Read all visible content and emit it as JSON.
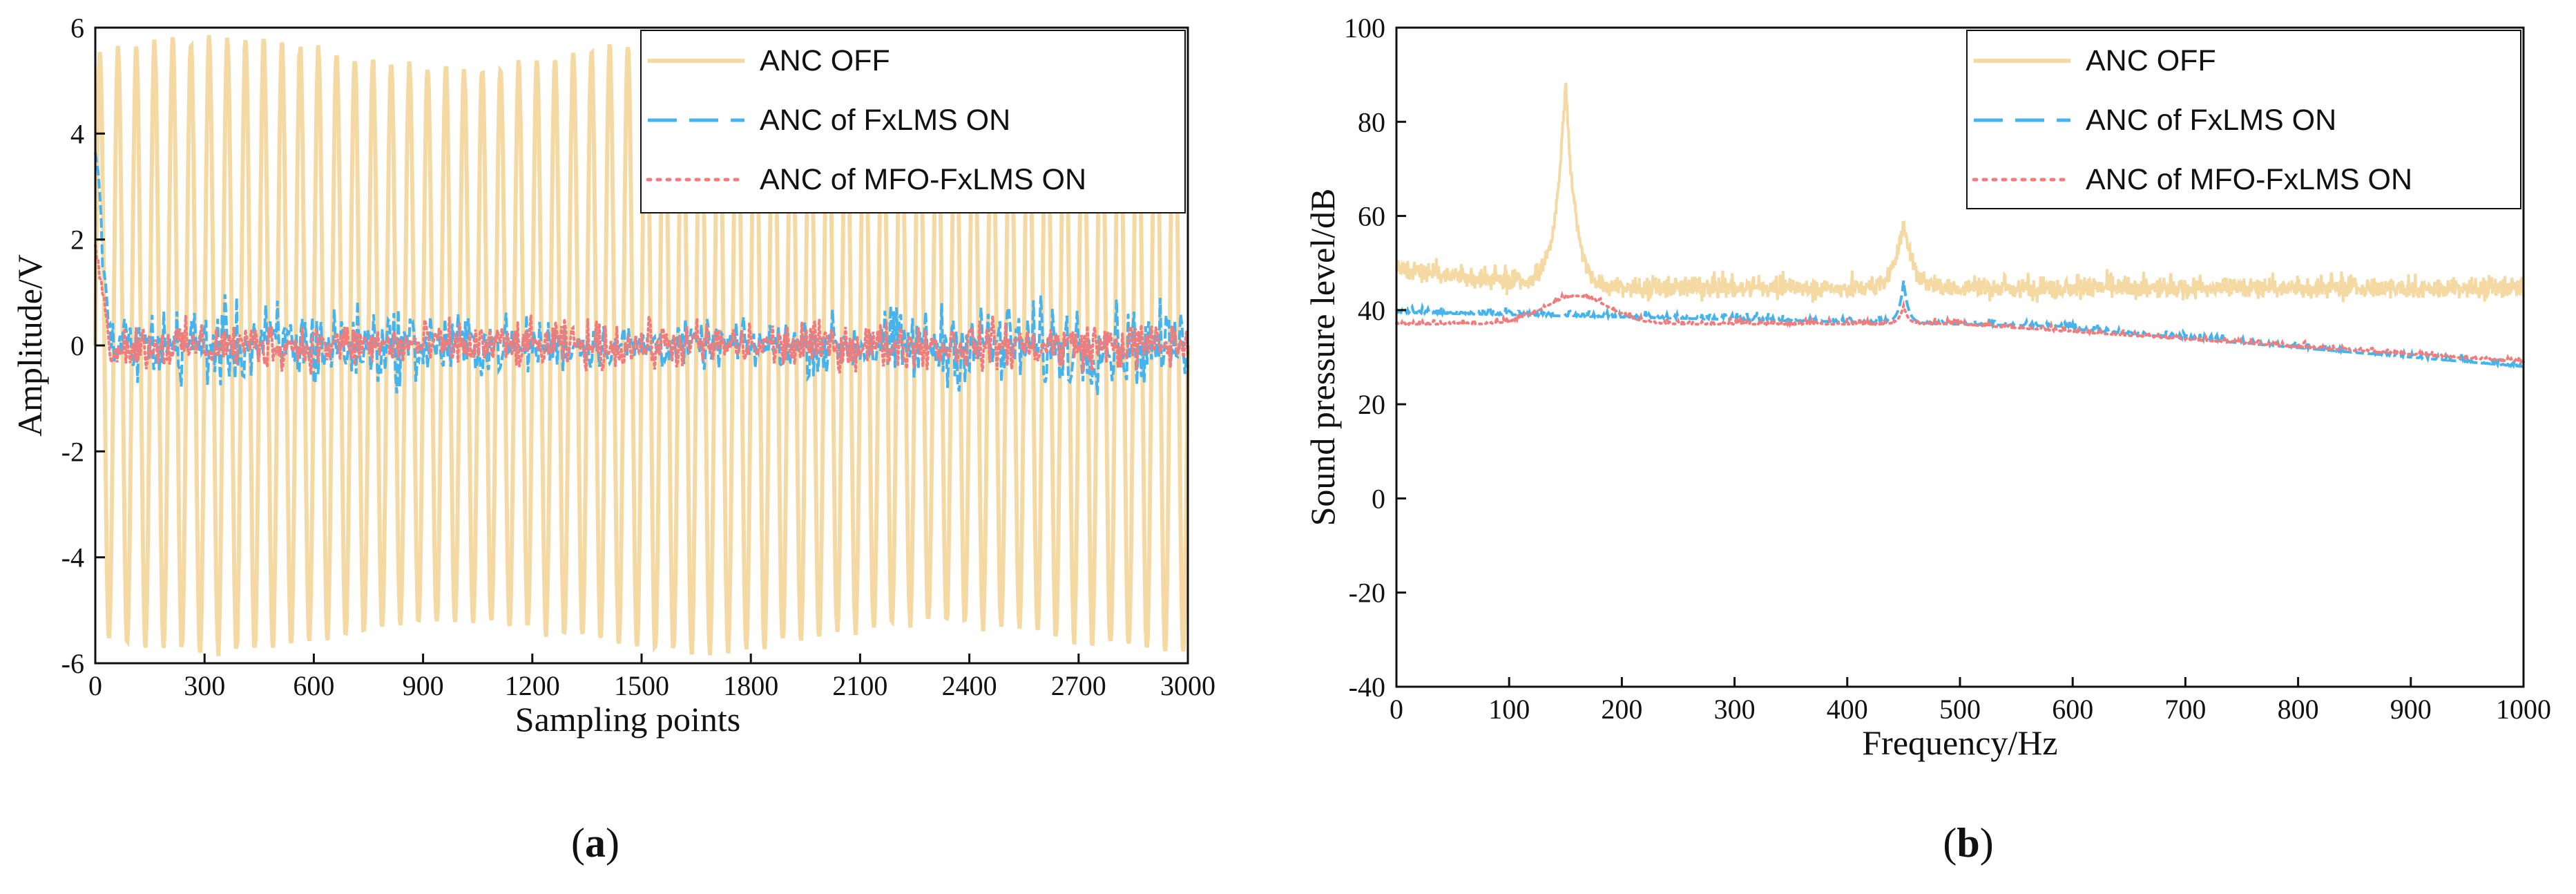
{
  "colors": {
    "anc_off": "#f5d9a3",
    "fxlms": "#45b4ee",
    "mfo_fxlms": "#f07c7c",
    "axis": "#111111"
  },
  "chart_data": [
    {
      "id": "a",
      "type": "line",
      "panel_label": "a",
      "xlabel": "Sampling points",
      "ylabel": "Amplitude/V",
      "xlim": [
        0,
        3000
      ],
      "ylim": [
        -6,
        6
      ],
      "xticks": [
        0,
        300,
        600,
        900,
        1200,
        1500,
        1800,
        2100,
        2400,
        2700,
        3000
      ],
      "yticks": [
        -6,
        -4,
        -2,
        0,
        2,
        4,
        6
      ],
      "legend": [
        "ANC OFF",
        "ANC of FxLMS ON",
        "ANC of MFO-FxLMS ON"
      ],
      "legend_position": "top-right",
      "series": [
        {
          "name": "ANC OFF",
          "style": "solid",
          "description": "periodic oscillation",
          "period_samples": 50,
          "amplitude": 5.5
        },
        {
          "name": "ANC of FxLMS ON",
          "style": "dashed",
          "description": "residual noise",
          "initial_peak": 3.8,
          "steady_range": [
            -1.0,
            1.0
          ]
        },
        {
          "name": "ANC of MFO-FxLMS ON",
          "style": "dotted",
          "description": "residual noise",
          "initial_peak": 2.0,
          "steady_range": [
            -0.6,
            0.6
          ]
        }
      ]
    },
    {
      "id": "b",
      "type": "line",
      "panel_label": "b",
      "xlabel": "Frequency/Hz",
      "ylabel": "Sound pressure level/dB",
      "xlim": [
        0,
        1000
      ],
      "ylim": [
        -40,
        100
      ],
      "xticks": [
        0,
        100,
        200,
        300,
        400,
        500,
        600,
        700,
        800,
        900,
        1000
      ],
      "yticks": [
        -40,
        -20,
        0,
        20,
        40,
        60,
        80,
        100
      ],
      "legend": [
        "ANC OFF",
        "ANC of FxLMS ON",
        "ANC of MFO-FxLMS ON"
      ],
      "legend_position": "top-right",
      "series": [
        {
          "name": "ANC OFF",
          "style": "solid",
          "peaks": [
            {
              "x": 150,
              "y": 87
            },
            {
              "x": 450,
              "y": 57
            }
          ],
          "baseline_db": 38
        },
        {
          "name": "ANC of FxLMS ON",
          "style": "dashed",
          "peaks": [
            {
              "x": 450,
              "y": 51
            }
          ],
          "baseline_db": 38
        },
        {
          "name": "ANC of MFO-FxLMS ON",
          "style": "dotted",
          "peaks": [
            {
              "x": 160,
              "y": 44
            },
            {
              "x": 450,
              "y": 46
            }
          ],
          "baseline_db": 38
        }
      ]
    }
  ]
}
